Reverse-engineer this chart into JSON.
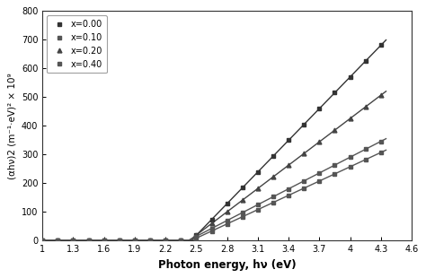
{
  "title": "",
  "xlabel": "Photon energy, hν (eV)",
  "ylabel": "(αhν)2 (m⁻¹·eV)² × 10⁹",
  "xlim": [
    1.0,
    4.6
  ],
  "ylim": [
    0,
    800
  ],
  "xticks": [
    1.0,
    1.3,
    1.6,
    1.9,
    2.2,
    2.5,
    2.8,
    3.1,
    3.4,
    3.7,
    4.0,
    4.3,
    4.6
  ],
  "yticks": [
    0,
    100,
    200,
    300,
    400,
    500,
    600,
    700,
    800
  ],
  "series": [
    {
      "label": "x=0.00",
      "onset": 2.45,
      "slope": 368.0,
      "color": "#333333",
      "marker": "s",
      "markersize": 3.0,
      "linewidth": 1.0
    },
    {
      "label": "x=0.10",
      "onset": 2.45,
      "slope": 166.0,
      "color": "#555555",
      "marker": "s",
      "markersize": 3.0,
      "linewidth": 1.0
    },
    {
      "label": "x=0.20",
      "onset": 2.43,
      "slope": 271.0,
      "color": "#444444",
      "marker": "^",
      "markersize": 3.5,
      "linewidth": 1.0
    },
    {
      "label": "x=0.40",
      "onset": 2.42,
      "slope": 184.0,
      "color": "#555555",
      "marker": "s",
      "markersize": 3.0,
      "linewidth": 1.0
    }
  ],
  "background": "#ffffff",
  "legend_loc": "upper left",
  "legend_fontsize": 7.0,
  "xlabel_fontsize": 8.5,
  "ylabel_fontsize": 7.5,
  "tick_fontsize": 7.0
}
